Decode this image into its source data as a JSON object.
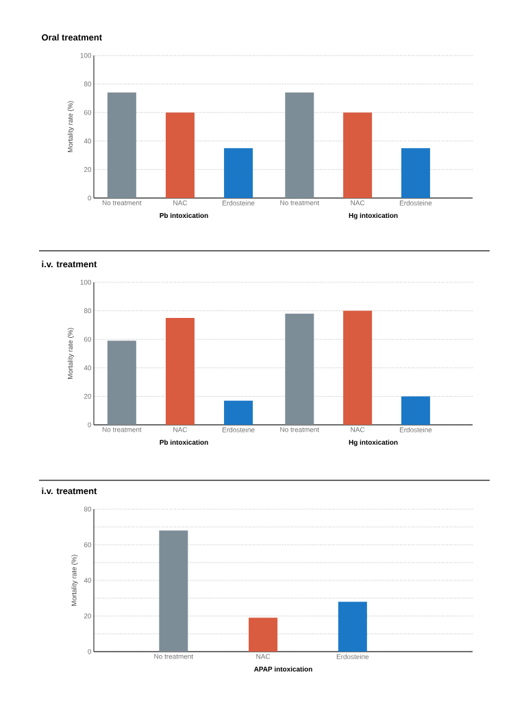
{
  "chart_data": [
    {
      "type": "bar",
      "title": "Oral treatment",
      "ylabel": "Mortality rate (%)",
      "xlabel": "Pb intoxication",
      "categories": [
        "No treatment",
        "NAC",
        "Erdosteine"
      ],
      "values": [
        74,
        60,
        35
      ],
      "colors": [
        "#7d8d97",
        "#d95b40",
        "#1b78c6"
      ],
      "ylim": [
        0,
        100
      ],
      "yticks": [
        0,
        20,
        40,
        60,
        80,
        100
      ],
      "grid": "y"
    },
    {
      "type": "bar",
      "xlabel": "Hg intoxication",
      "categories": [
        "No treatment",
        "NAC",
        "Erdosteine"
      ],
      "values": [
        74,
        60,
        35
      ],
      "colors": [
        "#7d8d97",
        "#d95b40",
        "#1b78c6"
      ],
      "ylim": [
        0,
        100
      ],
      "yticks": [
        0,
        20,
        40,
        60,
        80,
        100
      ],
      "grid": "y",
      "tick_labels": "x"
    },
    {
      "type": "bar",
      "title": "i.v. treatment",
      "ylabel": "Mortality rate (%)",
      "xlabel": "Pb intoxication",
      "categories": [
        "No treatment",
        "NAC",
        "Erdosteine"
      ],
      "values": [
        59,
        75,
        17
      ],
      "colors": [
        "#7d8d97",
        "#d95b40",
        "#1b78c6"
      ],
      "ylim": [
        0,
        100
      ],
      "yticks": [
        0,
        20,
        40,
        60,
        80,
        100
      ],
      "grid": "y"
    },
    {
      "type": "bar",
      "xlabel": "Hg intoxication",
      "categories": [
        "No treatment",
        "NAC",
        "Erdosteine"
      ],
      "values": [
        78,
        80,
        20
      ],
      "colors": [
        "#7d8d97",
        "#d95b40",
        "#1b78c6"
      ],
      "ylim": [
        0,
        100
      ],
      "yticks": [
        0,
        20,
        40,
        60,
        80,
        100
      ],
      "grid": "y",
      "tick_labels": "x"
    },
    {
      "type": "bar",
      "title": "i.v. treatment",
      "ylabel": "Mortality rate (%)",
      "xlabel": "APAP intoxication",
      "categories": [
        "No treatment",
        "NAC",
        "Erdosteine"
      ],
      "values": [
        68,
        19,
        28
      ],
      "colors": [
        "#7d8d97",
        "#d95b40",
        "#1b78c6"
      ],
      "ylim": [
        0,
        80
      ],
      "yticks": [
        0,
        {
          "value": 10,
          "label": null
        },
        20,
        {
          "value": 30,
          "label": null
        },
        40,
        {
          "value": 50,
          "label": null
        },
        60,
        {
          "value": 70,
          "label": null
        },
        80
      ],
      "grid": "y"
    }
  ]
}
